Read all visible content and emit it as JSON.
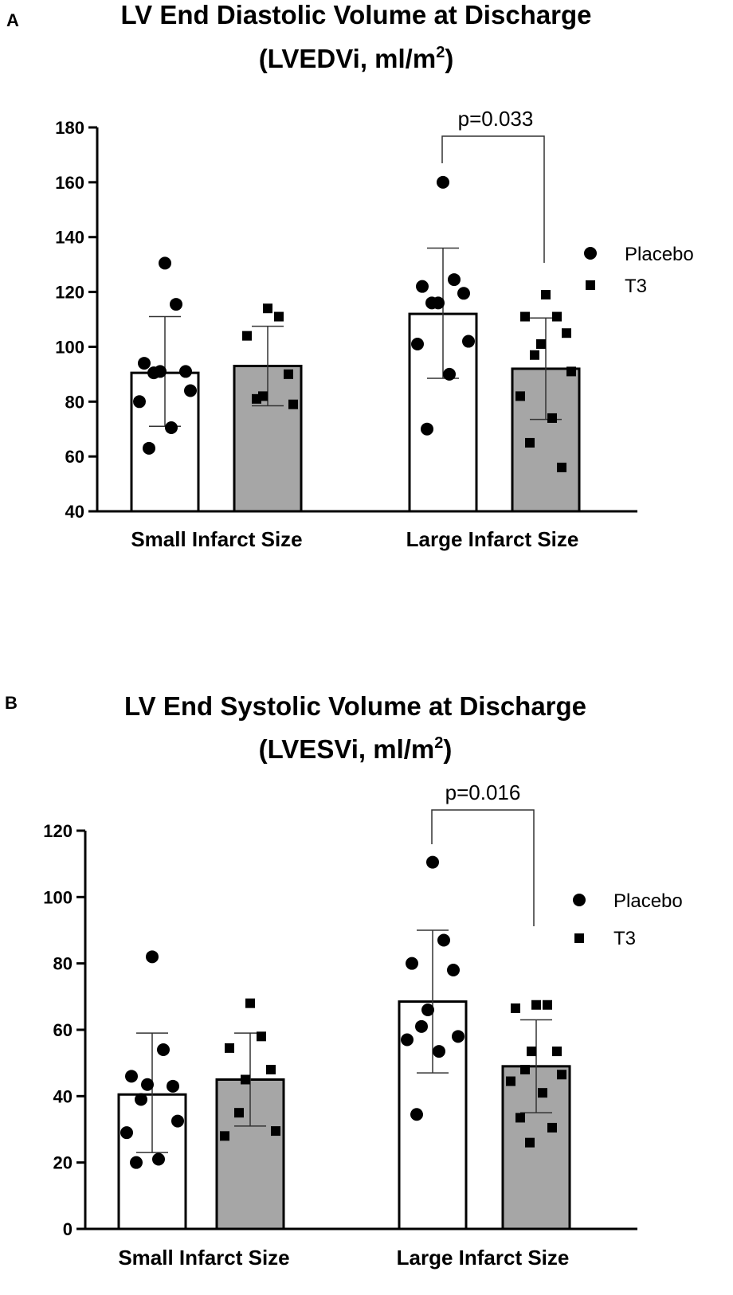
{
  "chart_data": [
    {
      "type": "bar",
      "panel_label": "A",
      "title_line1": "LV End Diastolic Volume at Discharge",
      "title_line2_main": "(LVEDVi, ml/m",
      "title_line2_sup": "2",
      "title_line2_close": ")",
      "categories": [
        "Small Infarct Size",
        "Large Infarct Size"
      ],
      "ylim": [
        40,
        180
      ],
      "yticks": [
        40,
        60,
        80,
        100,
        120,
        140,
        160,
        180
      ],
      "legend": {
        "position": "right",
        "entries": [
          {
            "label": "Placebo",
            "marker": "circle"
          },
          {
            "label": "T3",
            "marker": "square"
          }
        ]
      },
      "series": [
        {
          "name": "Placebo",
          "fill": "#ffffff",
          "marker": "circle",
          "values": [
            90.5,
            112
          ],
          "err_low": [
            71,
            88.5
          ],
          "err_high": [
            111,
            136
          ],
          "points": [
            [
              130.5,
              115.5,
              94,
              91,
              91,
              90.5,
              84,
              80,
              70.5,
              63
            ],
            [
              160,
              124.5,
              122,
              119.5,
              116,
              116,
              102,
              101,
              90,
              70
            ]
          ]
        },
        {
          "name": "T3",
          "fill": "#a6a6a6",
          "marker": "square",
          "values": [
            93,
            92
          ],
          "err_low": [
            78.5,
            73.5
          ],
          "err_high": [
            107.5,
            110.5
          ],
          "points": [
            [
              114,
              111,
              104,
              90,
              82,
              81,
              79
            ],
            [
              119,
              111,
              111,
              105,
              101,
              97,
              91,
              82,
              74,
              65,
              56
            ]
          ]
        }
      ],
      "annotations": [
        {
          "text": "p=0.033",
          "group": 1
        }
      ]
    },
    {
      "type": "bar",
      "panel_label": "B",
      "title_line1": "LV End Systolic Volume at Discharge",
      "title_line2_main": "(LVESVi, ml/m",
      "title_line2_sup": "2",
      "title_line2_close": ")",
      "categories": [
        "Small Infarct Size",
        "Large Infarct Size"
      ],
      "ylim": [
        0,
        120
      ],
      "yticks": [
        0,
        20,
        40,
        60,
        80,
        100,
        120
      ],
      "legend": {
        "position": "right",
        "entries": [
          {
            "label": "Placebo",
            "marker": "circle"
          },
          {
            "label": "T3",
            "marker": "square"
          }
        ]
      },
      "series": [
        {
          "name": "Placebo",
          "fill": "#ffffff",
          "marker": "circle",
          "values": [
            40.5,
            68.5
          ],
          "err_low": [
            23,
            47
          ],
          "err_high": [
            59,
            90
          ],
          "points": [
            [
              82,
              54,
              46,
              43,
              43.5,
              39,
              32.5,
              29,
              21,
              20
            ],
            [
              110.5,
              87,
              80,
              78,
              66,
              61,
              58,
              57,
              53.5,
              34.5
            ]
          ]
        },
        {
          "name": "T3",
          "fill": "#a6a6a6",
          "marker": "square",
          "values": [
            45,
            49
          ],
          "err_low": [
            31,
            35
          ],
          "err_high": [
            59,
            63
          ],
          "points": [
            [
              68,
              58,
              54.5,
              48,
              45,
              35,
              29.5,
              28
            ],
            [
              67.5,
              67.5,
              66.5,
              53.5,
              53.5,
              48,
              46.5,
              44.5,
              41,
              33.5,
              30.5,
              26
            ]
          ]
        }
      ],
      "annotations": [
        {
          "text": "p=0.016",
          "group": 1
        }
      ]
    }
  ]
}
